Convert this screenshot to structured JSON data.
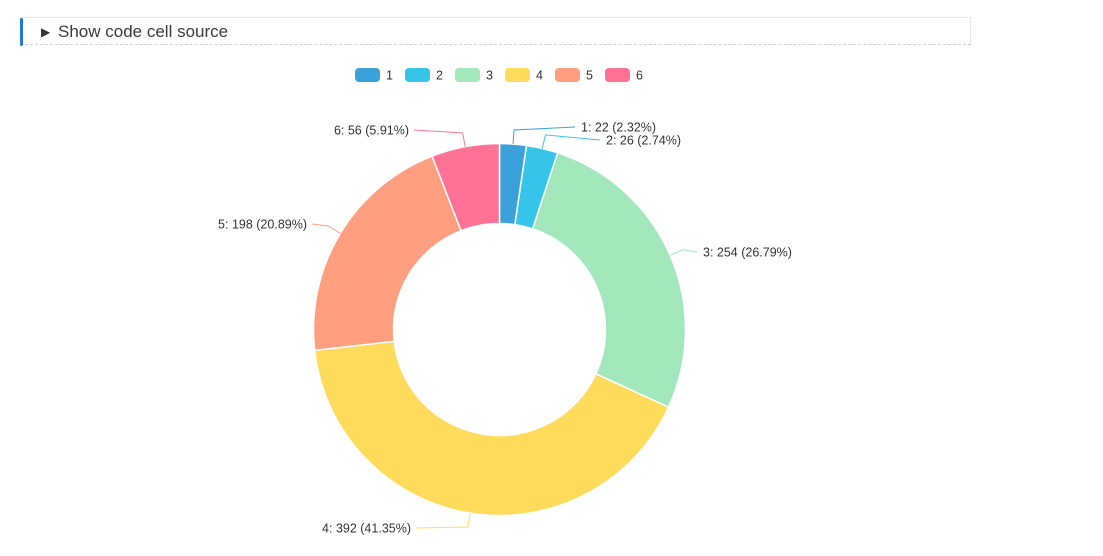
{
  "toggle": {
    "label": "Show code cell source",
    "icon": "triangle-right-icon"
  },
  "chart_data": {
    "type": "pie",
    "variant": "donut",
    "title": "",
    "categories": [
      "1",
      "2",
      "3",
      "4",
      "5",
      "6"
    ],
    "values": [
      22,
      26,
      254,
      392,
      198,
      56
    ],
    "percents": [
      "2.32%",
      "2.74%",
      "26.79%",
      "41.35%",
      "20.89%",
      "5.91%"
    ],
    "labels": [
      "1: 22 (2.32%)",
      "2: 26 (2.74%)",
      "3: 254 (26.79%)",
      "4: 392 (41.35%)",
      "5: 198 (20.89%)",
      "6: 56 (5.91%)"
    ],
    "colors": [
      "#3ba1da",
      "#36c5e8",
      "#a2e6bc",
      "#ffdb5c",
      "#ff9f7f",
      "#ff7295"
    ],
    "legend": {
      "position": "top-center",
      "items": [
        "1",
        "2",
        "3",
        "4",
        "5",
        "6"
      ]
    }
  }
}
